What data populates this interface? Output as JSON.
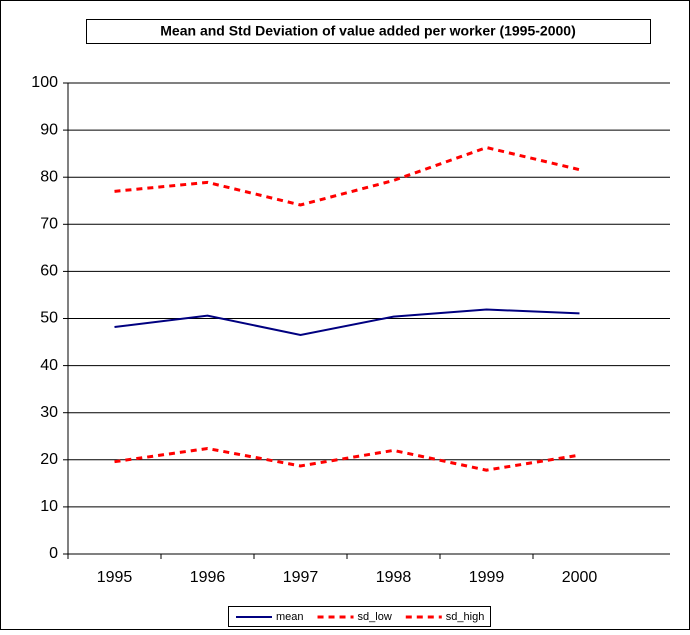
{
  "chart_data": {
    "type": "line",
    "title": "Mean and Std Deviation of value added per worker (1995-2000)",
    "categories": [
      "1995",
      "1996",
      "1997",
      "1998",
      "1999",
      "2000"
    ],
    "series": [
      {
        "name": "mean",
        "color": "#000080",
        "dash": false,
        "values": [
          48.2,
          50.6,
          46.5,
          50.4,
          51.9,
          51.1
        ]
      },
      {
        "name": "sd_low",
        "color": "#ff0000",
        "dash": true,
        "values": [
          19.6,
          22.4,
          18.7,
          22.0,
          17.8,
          21.0
        ]
      },
      {
        "name": "sd_high",
        "color": "#ff0000",
        "dash": true,
        "values": [
          77.0,
          78.9,
          74.1,
          79.3,
          86.3,
          81.6
        ]
      }
    ],
    "ylim": [
      0,
      100
    ],
    "yticks": [
      0,
      10,
      20,
      30,
      40,
      50,
      60,
      70,
      80,
      90,
      100
    ],
    "grid": true,
    "legend": "bottom"
  }
}
